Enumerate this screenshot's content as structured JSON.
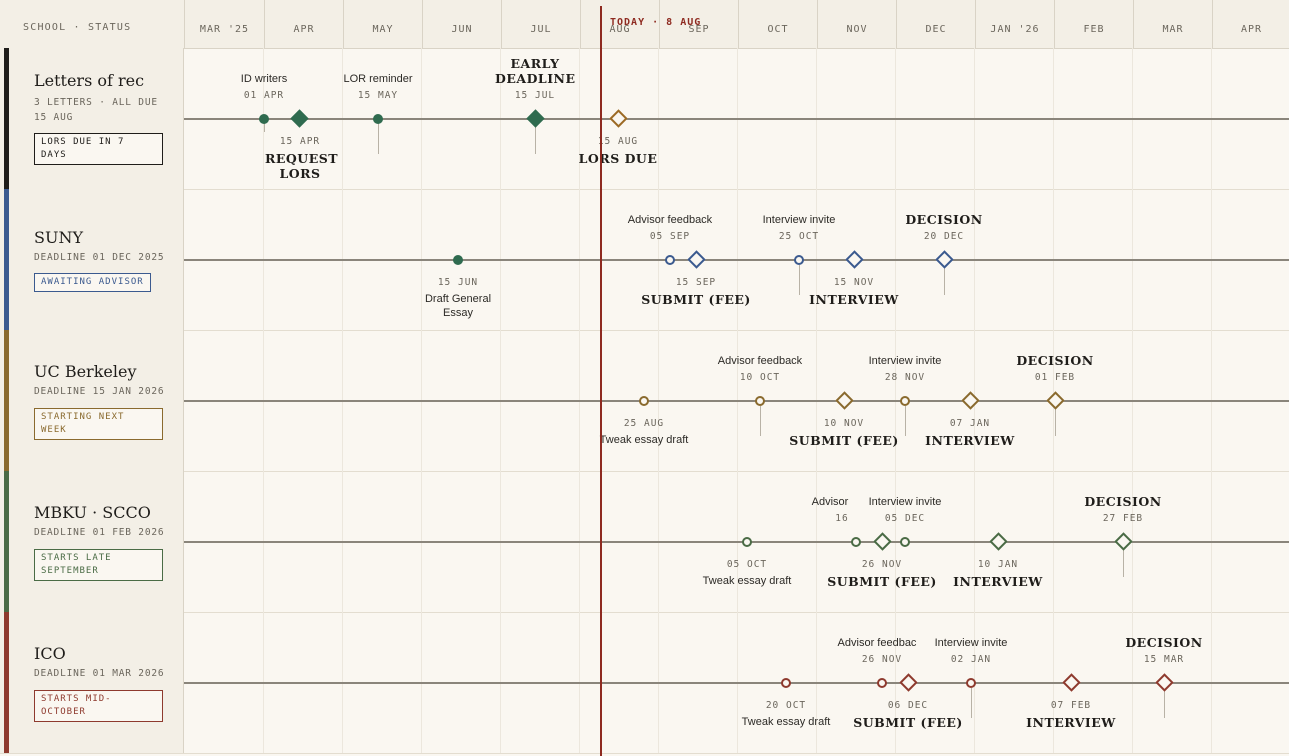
{
  "header": {
    "label": "SCHOOL · STATUS",
    "months": [
      "MAR '25",
      "APR",
      "MAY",
      "JUN",
      "JUL",
      "AUG",
      "SEP",
      "OCT",
      "NOV",
      "DEC",
      "JAN '26",
      "FEB",
      "MAR",
      "APR"
    ],
    "today_label": "TODAY · 8 AUG"
  },
  "rows": [
    {
      "title": "Letters of rec",
      "subtitle": "3 LETTERS · ALL DUE 15 AUG",
      "badge": "LORS DUE IN 7 DAYS",
      "color": "#2f6b4f",
      "events": {
        "e1": {
          "label": "ID writers",
          "date": "01 APR"
        },
        "e2": {
          "title": "REQUEST LORS",
          "date": "15 APR"
        },
        "e3": {
          "label": "LOR reminder",
          "date": "15 MAY"
        },
        "e4": {
          "title": "EARLY DEADLINE",
          "date": "15 JUL"
        },
        "e5": {
          "title": "LORS DUE",
          "date": "15 AUG"
        }
      }
    },
    {
      "title": "SUNY",
      "subtitle": "DEADLINE 01 DEC 2025",
      "badge": "AWAITING ADVISOR",
      "color": "#3b5a8f",
      "events": {
        "e1": {
          "label": "Draft General Essay",
          "date": "15 JUN"
        },
        "e2": {
          "label": "Advisor feedback",
          "date": "05 SEP"
        },
        "e3": {
          "title": "SUBMIT (FEE)",
          "date": "15 SEP"
        },
        "e4": {
          "label": "Interview invite",
          "date": "25 OCT"
        },
        "e5": {
          "title": "INTERVIEW",
          "date": "15 NOV"
        },
        "e6": {
          "title": "DECISION",
          "date": "20 DEC"
        }
      }
    },
    {
      "title": "UC Berkeley",
      "subtitle": "DEADLINE 15 JAN 2026",
      "badge": "STARTING NEXT WEEK",
      "color": "#8a6a2e",
      "events": {
        "e1": {
          "label": "Tweak essay draft",
          "date": "25 AUG"
        },
        "e2": {
          "label": "Advisor feedback",
          "date": "10 OCT"
        },
        "e3": {
          "title": "SUBMIT (FEE)",
          "date": "10 NOV"
        },
        "e4": {
          "label": "Interview invite",
          "date": "28 NOV"
        },
        "e5": {
          "title": "INTERVIEW",
          "date": "07 JAN"
        },
        "e6": {
          "title": "DECISION",
          "date": "01 FEB"
        }
      }
    },
    {
      "title": "MBKU · SCCO",
      "subtitle": "DEADLINE 01 FEB 2026",
      "badge": "STARTS LATE SEPTEMBER",
      "color": "#4a6b45",
      "events": {
        "e1": {
          "label": "Tweak essay draft",
          "date": "05 OCT"
        },
        "e2": {
          "label": "Advisor",
          "date": "16"
        },
        "e3": {
          "title": "SUBMIT (FEE)",
          "date": "26 NOV"
        },
        "e4": {
          "label": "Interview invite",
          "date": "05 DEC"
        },
        "e5": {
          "title": "INTERVIEW",
          "date": "10 JAN"
        },
        "e6": {
          "title": "DECISION",
          "date": "27 FEB"
        }
      }
    },
    {
      "title": "ICO",
      "subtitle": "DEADLINE 01 MAR 2026",
      "badge": "STARTS MID-OCTOBER",
      "color": "#8e3a2e",
      "events": {
        "e1": {
          "label": "Tweak essay draft",
          "date": "20 OCT"
        },
        "e2": {
          "label": "Advisor feedbac",
          "date": "26 NOV"
        },
        "e3": {
          "title": "SUBMIT (FEE)",
          "date": "06 DEC"
        },
        "e4": {
          "label": "Interview invite",
          "date": "02 JAN"
        },
        "e5": {
          "title": "INTERVIEW",
          "date": "07 FEB"
        },
        "e6": {
          "title": "DECISION",
          "date": "15 MAR"
        }
      }
    }
  ]
}
